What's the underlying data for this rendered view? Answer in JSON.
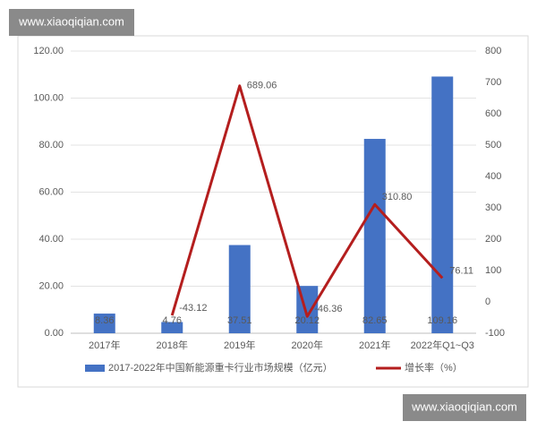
{
  "watermarks": [
    "www.xiaoqiqian.com",
    "www.xiaoqiqian.com"
  ],
  "chart_data": {
    "type": "bar",
    "categories": [
      "2017年",
      "2018年",
      "2019年",
      "2020年",
      "2021年",
      "2022年Q1~Q3"
    ],
    "series": [
      {
        "name": "2017-2022年中国新能源重卡行业市场规模（亿元）",
        "type": "bar",
        "color": "#4472c4",
        "values": [
          8.36,
          4.76,
          37.51,
          20.12,
          82.65,
          109.16
        ]
      },
      {
        "name": "增长率（%）",
        "type": "line",
        "axis": "y2",
        "color": "#b41e1e",
        "values": [
          null,
          -43.12,
          689.06,
          -46.36,
          310.8,
          76.11
        ],
        "value_labels": [
          null,
          "-43.12",
          "689.06",
          "-46.36",
          "310.80",
          "76.11"
        ]
      }
    ],
    "ylim": [
      0,
      120
    ],
    "yticks": [
      {
        "value": 0,
        "label": "0.00"
      },
      {
        "value": 20,
        "label": "20.00"
      },
      {
        "value": 40,
        "label": "40.00"
      },
      {
        "value": 60,
        "label": "60.00"
      },
      {
        "value": 80,
        "label": "80.00"
      },
      {
        "value": 100,
        "label": "100.00"
      },
      {
        "value": 120,
        "label": "120.00"
      }
    ],
    "y2lim": [
      -100,
      800
    ],
    "y2ticks": [
      -100,
      0,
      100,
      200,
      300,
      400,
      500,
      600,
      700,
      800
    ],
    "grid": true
  }
}
